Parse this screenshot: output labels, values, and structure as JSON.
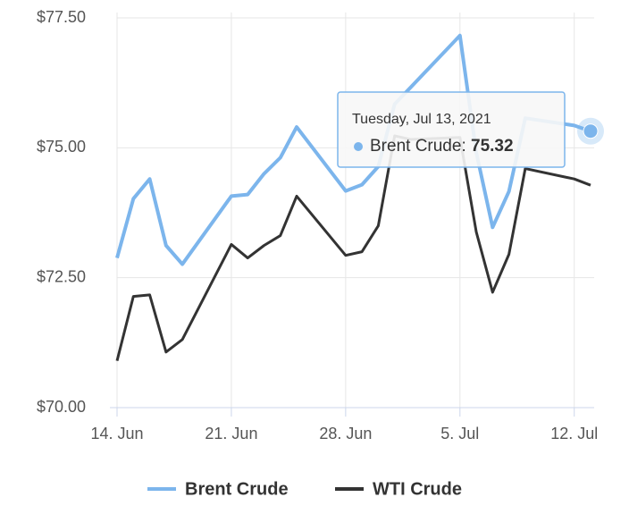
{
  "chart_data": {
    "type": "line",
    "x": [
      "2021-06-14",
      "2021-06-15",
      "2021-06-16",
      "2021-06-17",
      "2021-06-18",
      "2021-06-21",
      "2021-06-22",
      "2021-06-23",
      "2021-06-24",
      "2021-06-25",
      "2021-06-28",
      "2021-06-29",
      "2021-06-30",
      "2021-07-01",
      "2021-07-02",
      "2021-07-05",
      "2021-07-06",
      "2021-07-07",
      "2021-07-08",
      "2021-07-09",
      "2021-07-12",
      "2021-07-13"
    ],
    "series": [
      {
        "name": "Brent Crude",
        "color": "#7cb5ec",
        "values": [
          72.88,
          74.02,
          74.4,
          73.12,
          72.76,
          74.07,
          74.1,
          74.5,
          74.81,
          75.4,
          74.17,
          74.29,
          74.64,
          75.84,
          76.17,
          77.16,
          74.91,
          73.47,
          74.16,
          75.57,
          75.43,
          75.32
        ]
      },
      {
        "name": "WTI Crude",
        "color": "#333333",
        "values": [
          70.9,
          72.14,
          72.17,
          71.07,
          71.31,
          73.14,
          72.88,
          73.12,
          73.31,
          74.07,
          72.93,
          73.0,
          73.5,
          75.23,
          75.16,
          75.2,
          73.38,
          72.22,
          72.95,
          74.6,
          74.4,
          74.28
        ]
      }
    ],
    "xlim": [
      "2021-06-14",
      "2021-07-13"
    ],
    "xticks": [
      {
        "value": "2021-06-14",
        "label": "14. Jun"
      },
      {
        "value": "2021-06-21",
        "label": "21. Jun"
      },
      {
        "value": "2021-06-28",
        "label": "28. Jun"
      },
      {
        "value": "2021-07-05",
        "label": "5. Jul"
      },
      {
        "value": "2021-07-12",
        "label": "12. Jul"
      }
    ],
    "ylim": [
      70,
      77.5
    ],
    "yticks": [
      {
        "value": 70,
        "label": "$70.00"
      },
      {
        "value": 72.5,
        "label": "$72.50"
      },
      {
        "value": 75,
        "label": "$75.00"
      },
      {
        "value": 77.5,
        "label": "$77.50"
      }
    ],
    "grid": true,
    "legend": "bottom",
    "tooltip": {
      "header": "Tuesday, Jul 13, 2021",
      "series": 0,
      "point": 21
    }
  }
}
